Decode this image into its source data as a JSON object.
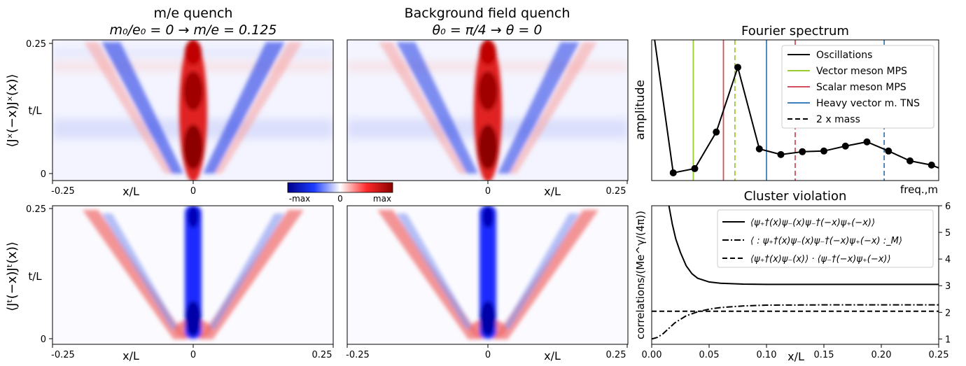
{
  "figure": {
    "col1_title_line1": "m/e quench",
    "col1_title_line2": "m₀/e₀ = 0 → m/e = 0.125",
    "col2_title_line1": "Background field quench",
    "col2_title_line2": "θ₀ = π/4 → θ = 0",
    "row1_ylabel": "⟨Jˣ(−x)Jˣ(x)⟩",
    "row2_ylabel": "⟨Jᵗ(−x)Jᵗ(x)⟩",
    "t_axis_label": "t/L",
    "x_axis_label": "x/L",
    "t_ticks": [
      "0.25",
      "0"
    ],
    "x_ticks_left": [
      "-0.25",
      "0"
    ],
    "x_ticks_right": [
      "0",
      "0.25"
    ],
    "x_ticks_full": [
      "-0.25",
      "0",
      "0.25"
    ]
  },
  "colorbar": {
    "labels": [
      "-max",
      "0",
      "max"
    ],
    "colors": [
      "#00008b",
      "#1c3cff",
      "#ffffff",
      "#ff2a2a",
      "#8b0000"
    ]
  },
  "chart_data": [
    {
      "type": "heatmap",
      "title": "m/e quench — ⟨Jˣ(−x)Jˣ(x)⟩",
      "xlim": [
        -0.25,
        0.25
      ],
      "ylim": [
        0,
        0.25
      ],
      "features": {
        "center": "red",
        "lightcone": "blue",
        "velocity": 0.9
      }
    },
    {
      "type": "heatmap",
      "title": "Background field quench — ⟨Jˣ(−x)Jˣ(x)⟩",
      "xlim": [
        0,
        0.25
      ],
      "ylim": [
        0,
        0.25
      ],
      "features": {
        "center": "red",
        "lightcone": "blue",
        "velocity": 0.9
      }
    },
    {
      "type": "heatmap",
      "title": "m/e quench — ⟨Jᵗ(−x)Jᵗ(x)⟩",
      "xlim": [
        -0.25,
        0.25
      ],
      "ylim": [
        0,
        0.25
      ],
      "features": {
        "center": "blue",
        "lightcone": "red",
        "velocity": 0.9
      }
    },
    {
      "type": "heatmap",
      "title": "Background field quench — ⟨Jᵗ(−x)Jᵗ(x)⟩",
      "xlim": [
        -0.25,
        0.25
      ],
      "ylim": [
        0,
        0.25
      ],
      "features": {
        "center": "blue",
        "lightcone": "red",
        "velocity": 0.9
      }
    },
    {
      "type": "line",
      "title": "Fourier spectrum",
      "xlabel": "freq.,m",
      "ylabel": "amplitude",
      "xlim": [
        0,
        10
      ],
      "ylim": [
        0,
        1
      ],
      "legend_position": "top-right",
      "series": [
        {
          "name": "Oscillations",
          "color": "#000000",
          "x": [
            0,
            0.75,
            1.5,
            2.25,
            3.0,
            3.75,
            4.5,
            5.25,
            6.0,
            6.75,
            7.5,
            8.25,
            9.0,
            9.75,
            10
          ],
          "y": [
            1.15,
            0.055,
            0.085,
            0.345,
            0.805,
            0.225,
            0.185,
            0.205,
            0.21,
            0.245,
            0.275,
            0.21,
            0.14,
            0.11,
            0.09
          ]
        }
      ],
      "vlines": [
        {
          "name": "Vector meson MPS",
          "x": 1.45,
          "color": "#9acd32",
          "style": "solid"
        },
        {
          "name": "Scalar meson MPS",
          "x": 2.5,
          "color": "#d0505e",
          "style": "solid"
        },
        {
          "name": "Heavy vector m. TNS",
          "x": 4.0,
          "color": "#3d7ebd",
          "style": "solid"
        },
        {
          "name": "2 x mass",
          "x": 2.9,
          "color": "#9acd32",
          "style": "dashed"
        },
        {
          "name": "",
          "x": 5.0,
          "color": "#d0505e",
          "style": "dashed"
        },
        {
          "name": "",
          "x": 8.1,
          "color": "#3d7ebd",
          "style": "dashed"
        }
      ],
      "legend_entries": [
        {
          "label": "Oscillations",
          "color": "#000000",
          "style": "solid"
        },
        {
          "label": "Vector meson MPS",
          "color": "#9acd32",
          "style": "solid"
        },
        {
          "label": "Scalar meson MPS",
          "color": "#d0505e",
          "style": "solid"
        },
        {
          "label": "Heavy vector m. TNS",
          "color": "#3d7ebd",
          "style": "solid"
        },
        {
          "label": "2 x mass",
          "color": "#000000",
          "style": "dashed"
        }
      ]
    },
    {
      "type": "line",
      "title": "Cluster violation",
      "xlabel": "x/L",
      "ylabel": "correlations/(Me^γ/(4π))",
      "xlim": [
        0,
        0.25
      ],
      "ylim": [
        0.8,
        6
      ],
      "xticks": [
        "0.00",
        "0.05",
        "0.10",
        "0.15",
        "0.20",
        "0.25"
      ],
      "yticks": [
        "1",
        "2",
        "3",
        "4",
        "5",
        "6"
      ],
      "legend_position": "top-right",
      "series": [
        {
          "name": "⟨ψ₊†(x)ψ₋(x)ψ₋†(−x)ψ₊(−x)⟩",
          "style": "solid",
          "x": [
            0.015,
            0.018,
            0.021,
            0.025,
            0.03,
            0.035,
            0.04,
            0.05,
            0.06,
            0.08,
            0.1,
            0.15,
            0.2,
            0.25
          ],
          "y": [
            6.0,
            5.3,
            4.75,
            4.25,
            3.75,
            3.45,
            3.28,
            3.14,
            3.09,
            3.06,
            3.05,
            3.05,
            3.05,
            3.05
          ]
        },
        {
          "name": "⟨ : ψ₊†(x)ψ₋(x)ψ₋†(−x)ψ₊(−x) :_M⟩",
          "style": "dashdot",
          "x": [
            0,
            0.005,
            0.01,
            0.015,
            0.02,
            0.03,
            0.04,
            0.05,
            0.06,
            0.08,
            0.1,
            0.15,
            0.2,
            0.25
          ],
          "y": [
            1.0,
            1.06,
            1.2,
            1.4,
            1.6,
            1.87,
            2.02,
            2.12,
            2.18,
            2.24,
            2.27,
            2.28,
            2.28,
            2.28
          ]
        },
        {
          "name": "⟨ψ₊†(x)ψ₋(x)⟩ · ⟨ψ₋†(−x)ψ₊(−x)⟩",
          "style": "dashed",
          "x": [
            0,
            0.25
          ],
          "y": [
            2.04,
            2.04
          ]
        }
      ]
    }
  ]
}
